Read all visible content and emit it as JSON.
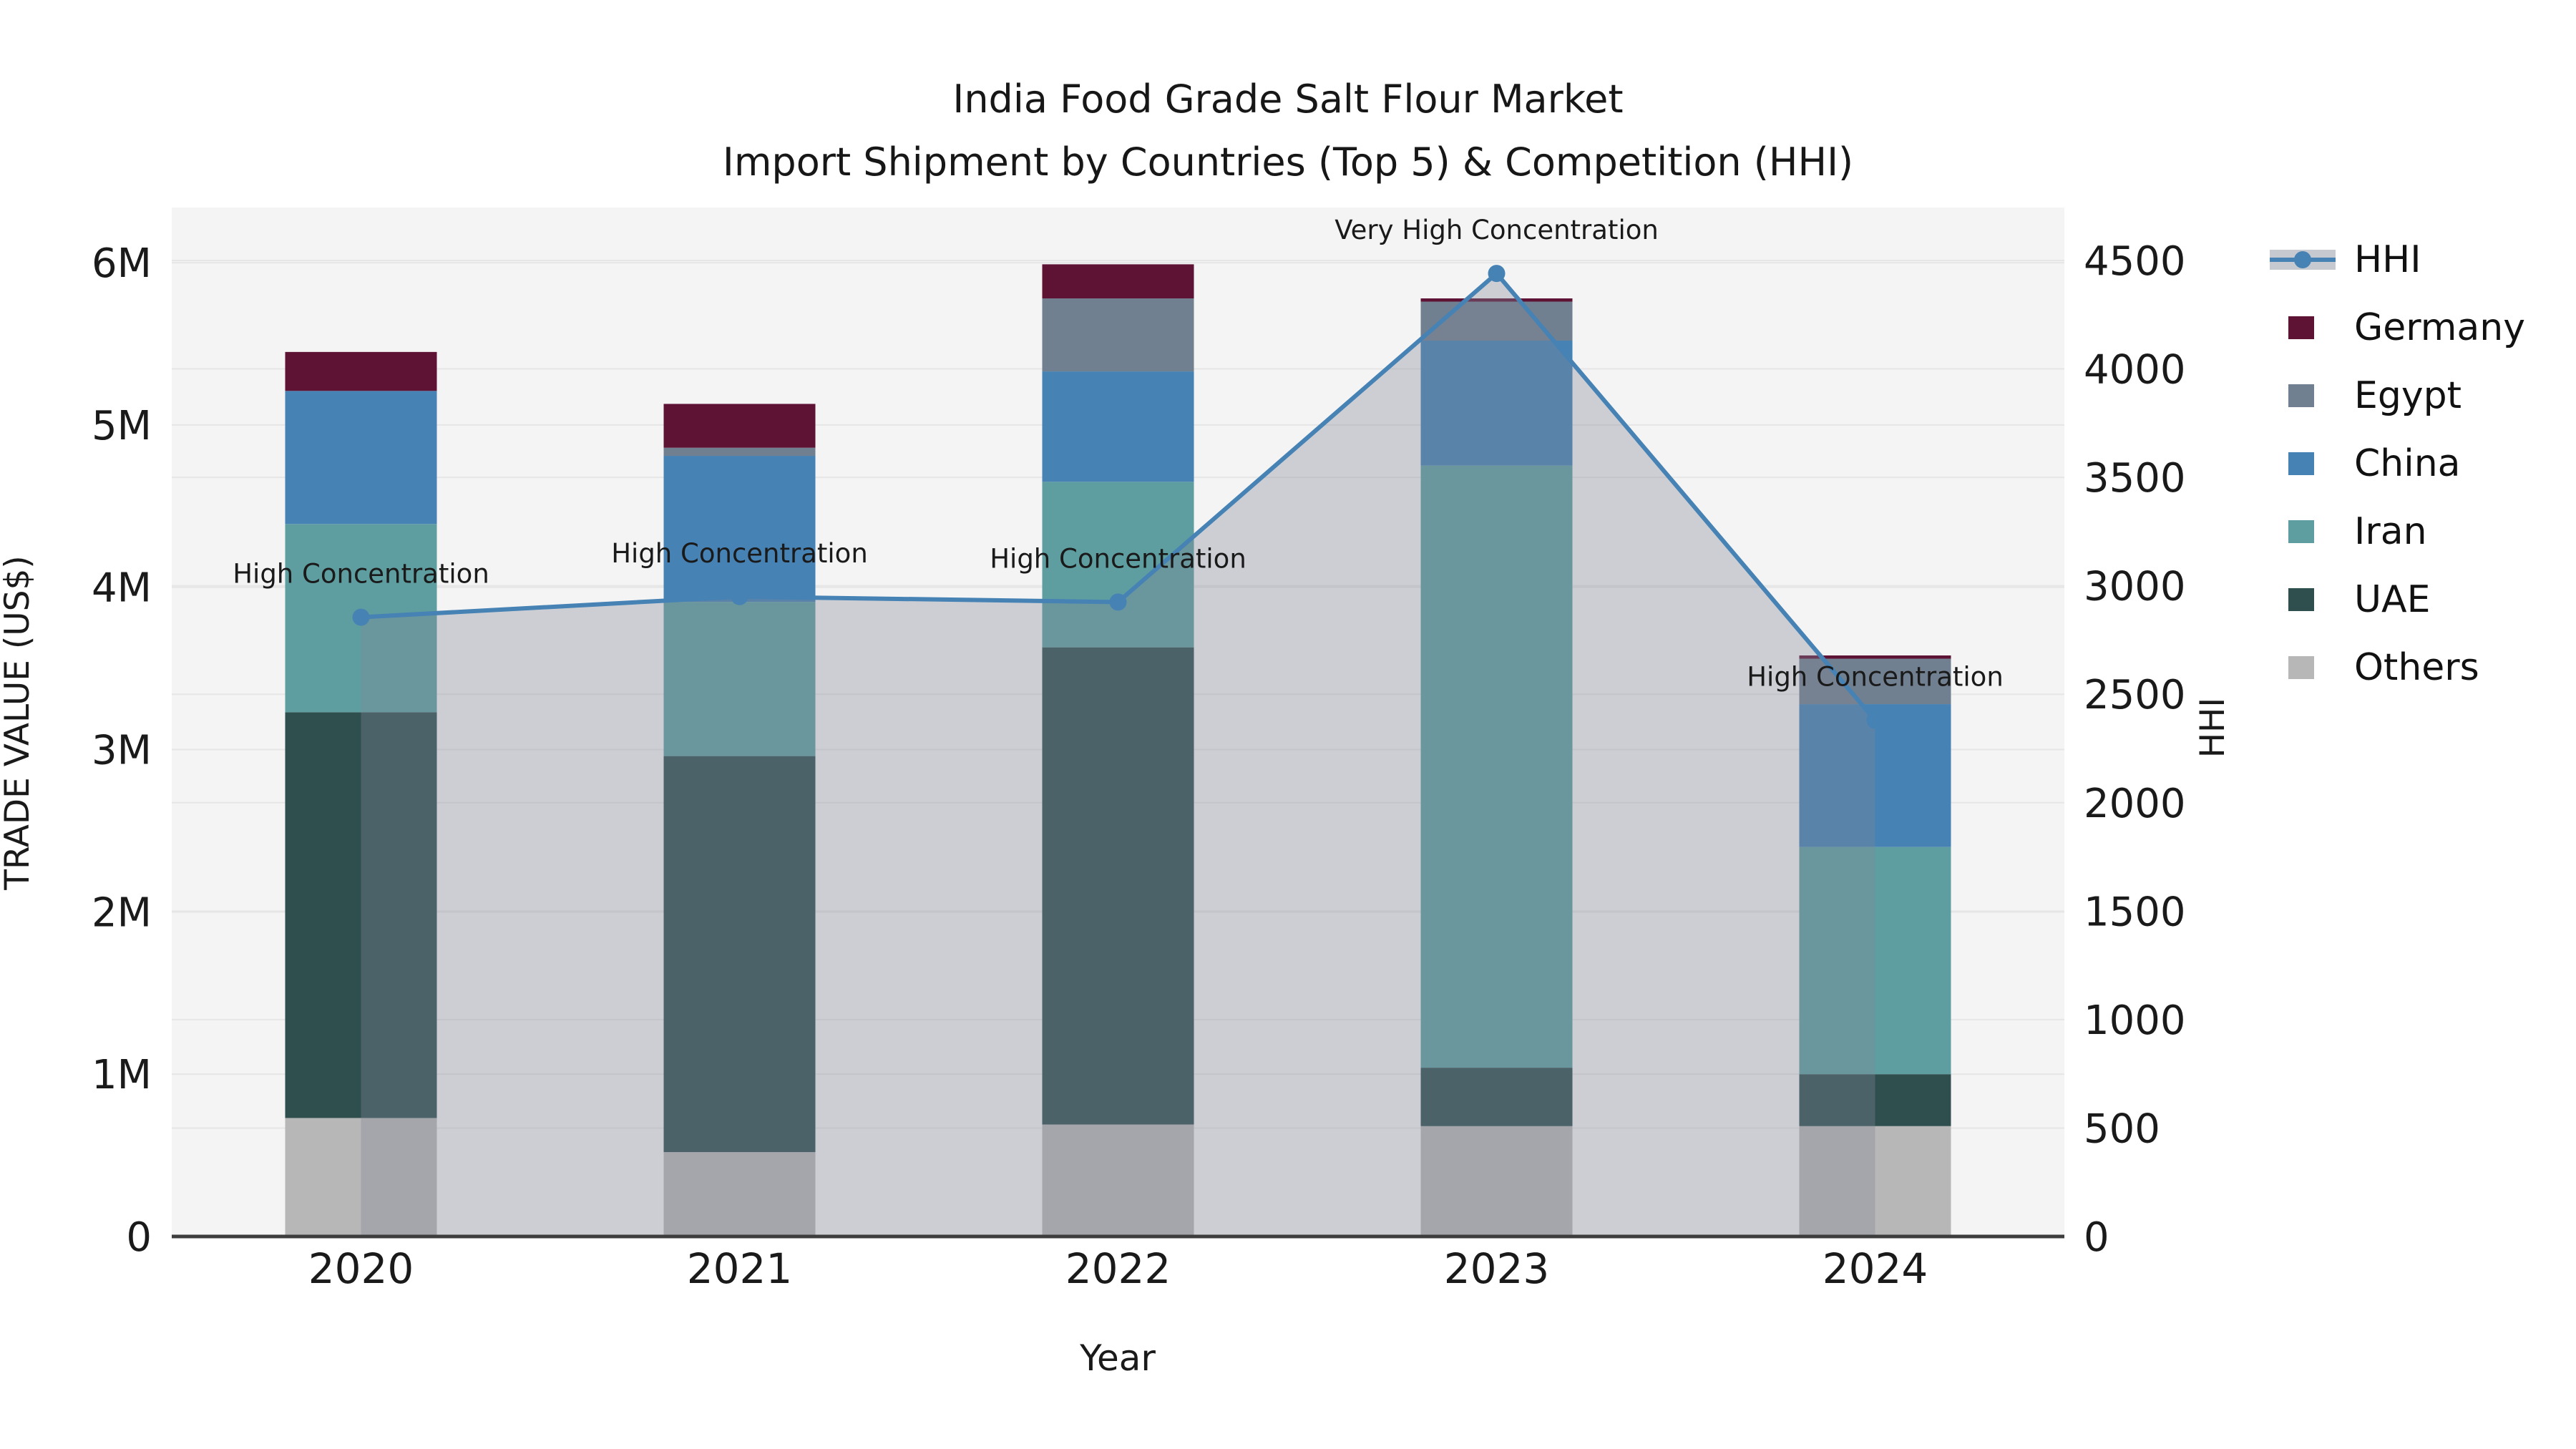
{
  "title": {
    "line1": "India Food Grade Salt Flour Market",
    "line2": "Import Shipment by Countries (Top 5) & Competition (HHI)"
  },
  "chart_data": {
    "type": "bar",
    "subtype": "stacked-bar-with-hhi-line-and-area",
    "title": "India Food Grade Salt Flour Market Import Shipment by Countries (Top 5) & Competition (HHI)",
    "xlabel": "Year",
    "ylabel": "TRADE VALUE (US$)",
    "y2label": "HHI",
    "categories": [
      "2020",
      "2021",
      "2022",
      "2023",
      "2024"
    ],
    "series": [
      {
        "name": "Others",
        "color": "#b7b7b7",
        "values": [
          730000,
          520000,
          690000,
          680000,
          680000
        ]
      },
      {
        "name": "UAE",
        "color": "#2f4f4f",
        "values": [
          2500000,
          2440000,
          2940000,
          360000,
          320000
        ]
      },
      {
        "name": "Iran",
        "color": "#5f9ea0",
        "values": [
          1160000,
          950000,
          1020000,
          3710000,
          1400000
        ]
      },
      {
        "name": "China",
        "color": "#4682b4",
        "values": [
          820000,
          900000,
          680000,
          770000,
          880000
        ]
      },
      {
        "name": "Egypt",
        "color": "#708090",
        "values": [
          0,
          50000,
          450000,
          240000,
          280000
        ]
      },
      {
        "name": "Germany",
        "color": "#5e1335",
        "values": [
          240000,
          270000,
          210000,
          20000,
          20000
        ]
      }
    ],
    "line": {
      "name": "HHI",
      "color": "#4682b4",
      "area_color": "rgba(130,136,152,0.35)",
      "values": [
        2855,
        2950,
        2925,
        4440,
        2380
      ]
    },
    "annotations": [
      "High Concentration",
      "High Concentration",
      "High Concentration",
      "Very High Concentration",
      "High Concentration"
    ],
    "y_axis": {
      "tick_labels": [
        "0",
        "1M",
        "2M",
        "3M",
        "4M",
        "5M",
        "6M"
      ],
      "tick_values": [
        0,
        1000000,
        2000000,
        3000000,
        4000000,
        5000000,
        6000000
      ],
      "range": [
        0,
        6340000
      ]
    },
    "y2_axis": {
      "tick_labels": [
        "0",
        "500",
        "1000",
        "1500",
        "2000",
        "2500",
        "3000",
        "3500",
        "4000",
        "4500"
      ],
      "tick_values": [
        0,
        500,
        1000,
        1500,
        2000,
        2500,
        3000,
        3500,
        4000,
        4500
      ],
      "range": [
        0,
        4744
      ]
    },
    "grid": true,
    "legend_position": "outside-top-right",
    "plot_bg": "#f4f4f4",
    "grid_color": "#e6e6e6"
  },
  "legend": {
    "items": [
      {
        "label": "HHI",
        "type": "line",
        "color": "#4682b4"
      },
      {
        "label": "Germany",
        "type": "swatch",
        "color": "#5e1335"
      },
      {
        "label": "Egypt",
        "type": "swatch",
        "color": "#708090"
      },
      {
        "label": "China",
        "type": "swatch",
        "color": "#4682b4"
      },
      {
        "label": "Iran",
        "type": "swatch",
        "color": "#5f9ea0"
      },
      {
        "label": "UAE",
        "type": "swatch",
        "color": "#2f4f4f"
      },
      {
        "label": "Others",
        "type": "swatch",
        "color": "#b7b7b7"
      }
    ]
  }
}
